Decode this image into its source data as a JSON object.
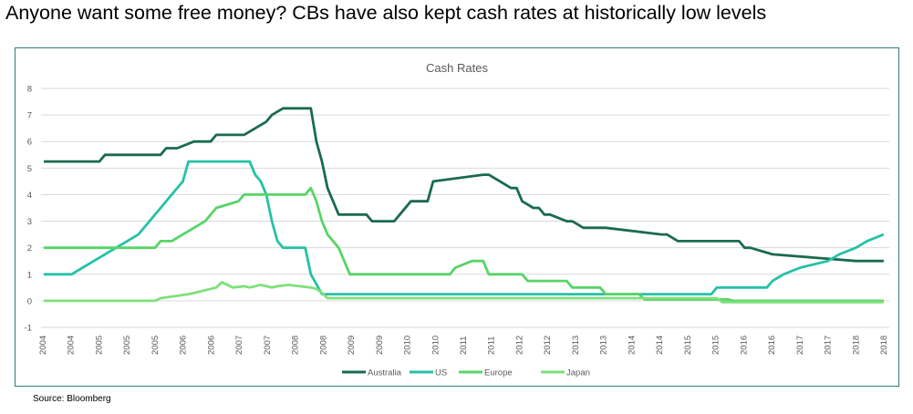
{
  "headline": "Anyone want some free money? CBs have also kept cash rates at historically low levels",
  "source": "Source: Bloomberg",
  "chart_data": {
    "type": "line",
    "title": "Cash Rates",
    "xlabel": "",
    "ylabel": "",
    "ylim": [
      -1,
      8
    ],
    "yticks": [
      -1,
      0,
      1,
      2,
      3,
      4,
      5,
      6,
      7,
      8
    ],
    "xlim": [
      2003.85,
      2019.1
    ],
    "xtick_labels": [
      "2004",
      "2004",
      "2005",
      "2005",
      "2005",
      "2006",
      "2006",
      "2007",
      "2007",
      "2008",
      "2008",
      "2009",
      "2009",
      "2010",
      "2010",
      "2011",
      "2011",
      "2012",
      "2012",
      "2013",
      "2013",
      "2014",
      "2014",
      "2015",
      "2015",
      "2016",
      "2016",
      "2017",
      "2017",
      "2018",
      "2018"
    ],
    "grid": "horizontal",
    "legend": "bottom",
    "series": [
      {
        "name": "Australia",
        "color": "#1a6b4d",
        "x": [
          2003.9,
          2004.2,
          2004.9,
          2005.0,
          2006.0,
          2006.1,
          2006.3,
          2006.6,
          2006.9,
          2007.0,
          2007.5,
          2007.7,
          2007.9,
          2008.0,
          2008.2,
          2008.5,
          2008.7,
          2008.8,
          2008.9,
          2009.0,
          2009.2,
          2009.7,
          2009.8,
          2009.9,
          2010.0,
          2010.2,
          2010.3,
          2010.5,
          2010.8,
          2010.9,
          2011.8,
          2011.9,
          2012.3,
          2012.4,
          2012.5,
          2012.7,
          2012.8,
          2012.9,
          2013.0,
          2013.3,
          2013.4,
          2013.6,
          2014.0,
          2015.0,
          2015.1,
          2015.3,
          2016.4,
          2016.5,
          2016.6,
          2017.0,
          2018.5,
          2019.0
        ],
        "y": [
          5.25,
          5.25,
          5.25,
          5.5,
          5.5,
          5.75,
          5.75,
          6.0,
          6.0,
          6.25,
          6.25,
          6.5,
          6.75,
          7.0,
          7.25,
          7.25,
          7.25,
          6.0,
          5.25,
          4.25,
          3.25,
          3.25,
          3.0,
          3.0,
          3.0,
          3.0,
          3.25,
          3.75,
          3.75,
          4.5,
          4.75,
          4.75,
          4.25,
          4.25,
          3.75,
          3.5,
          3.5,
          3.25,
          3.25,
          3.0,
          3.0,
          2.75,
          2.75,
          2.5,
          2.5,
          2.25,
          2.25,
          2.0,
          2.0,
          1.75,
          1.5,
          1.5
        ]
      },
      {
        "name": "US",
        "color": "#26c1a6",
        "x": [
          2003.9,
          2004.4,
          2004.6,
          2004.8,
          2005.0,
          2005.2,
          2005.4,
          2005.6,
          2005.8,
          2006.0,
          2006.2,
          2006.4,
          2006.5,
          2007.6,
          2007.7,
          2007.8,
          2007.9,
          2008.0,
          2008.1,
          2008.2,
          2008.3,
          2008.6,
          2008.7,
          2008.9,
          2009.0,
          2015.9,
          2016.0,
          2016.9,
          2017.0,
          2017.2,
          2017.5,
          2018.0,
          2018.2,
          2018.5,
          2018.7,
          2019.0
        ],
        "y": [
          1.0,
          1.0,
          1.25,
          1.5,
          1.75,
          2.0,
          2.25,
          2.5,
          3.0,
          3.5,
          4.0,
          4.5,
          5.25,
          5.25,
          4.75,
          4.5,
          4.0,
          3.0,
          2.25,
          2.0,
          2.0,
          2.0,
          1.0,
          0.25,
          0.25,
          0.25,
          0.5,
          0.5,
          0.75,
          1.0,
          1.25,
          1.5,
          1.75,
          2.0,
          2.25,
          2.5
        ]
      },
      {
        "name": "Europe",
        "color": "#58d468",
        "x": [
          2003.9,
          2005.9,
          2006.0,
          2006.2,
          2006.4,
          2006.6,
          2006.8,
          2006.9,
          2007.0,
          2007.4,
          2007.5,
          2008.6,
          2008.7,
          2008.8,
          2008.9,
          2009.0,
          2009.2,
          2009.3,
          2009.4,
          2011.2,
          2011.3,
          2011.6,
          2011.8,
          2011.9,
          2012.5,
          2012.6,
          2013.3,
          2013.4,
          2013.9,
          2014.0,
          2014.6,
          2014.7,
          2015.2,
          2016.2,
          2016.3,
          2019.0
        ],
        "y": [
          2.0,
          2.0,
          2.25,
          2.25,
          2.5,
          2.75,
          3.0,
          3.25,
          3.5,
          3.75,
          4.0,
          4.0,
          4.25,
          3.75,
          3.0,
          2.5,
          2.0,
          1.5,
          1.0,
          1.0,
          1.25,
          1.5,
          1.5,
          1.0,
          1.0,
          0.75,
          0.75,
          0.5,
          0.5,
          0.25,
          0.25,
          0.05,
          0.05,
          0.05,
          0.0,
          0.0
        ]
      },
      {
        "name": "Japan",
        "color": "#7ee07b",
        "x": [
          2003.9,
          2005.9,
          2006.0,
          2006.5,
          2006.6,
          2007.0,
          2007.1,
          2007.3,
          2007.5,
          2007.6,
          2007.8,
          2007.9,
          2008.0,
          2008.1,
          2008.3,
          2008.5,
          2008.7,
          2008.8,
          2008.9,
          2009.0,
          2013.0,
          2013.5,
          2016.0,
          2016.1,
          2019.0
        ],
        "y": [
          0.0,
          0.0,
          0.1,
          0.25,
          0.3,
          0.5,
          0.7,
          0.5,
          0.55,
          0.5,
          0.6,
          0.55,
          0.5,
          0.55,
          0.6,
          0.55,
          0.5,
          0.45,
          0.3,
          0.1,
          0.1,
          0.1,
          0.1,
          -0.05,
          -0.05
        ]
      }
    ]
  }
}
